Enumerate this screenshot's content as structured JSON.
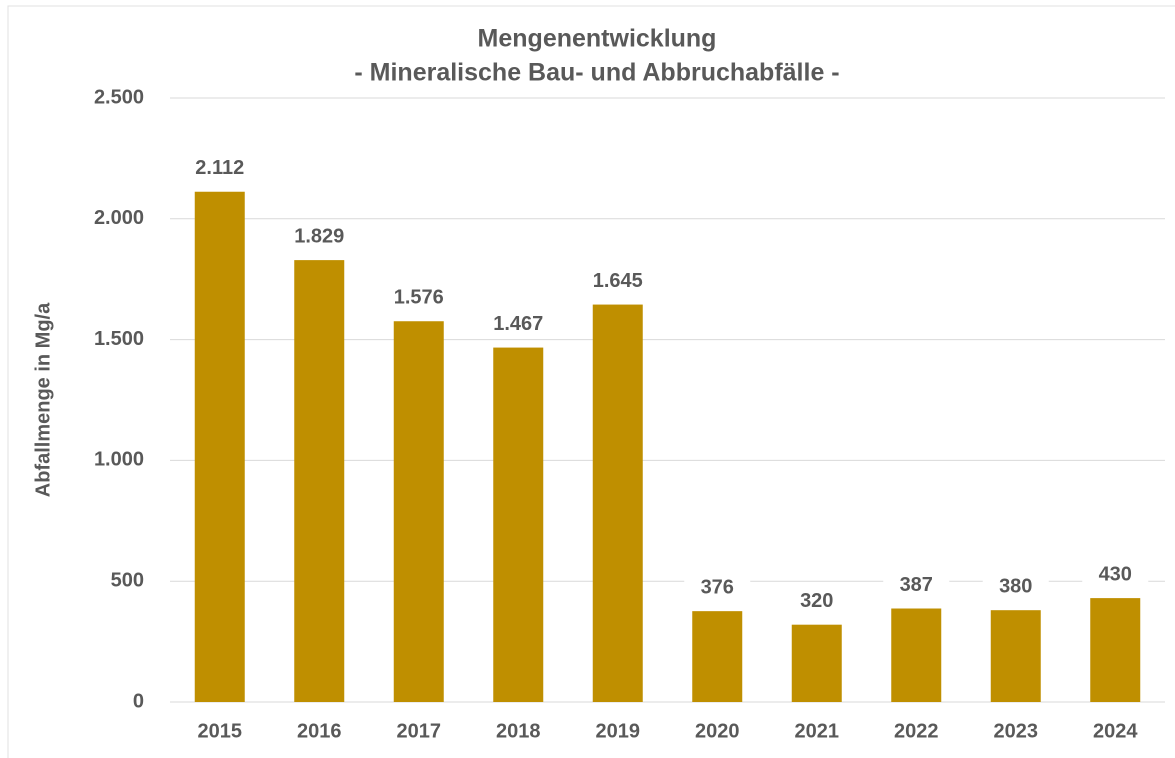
{
  "chart_data": {
    "type": "bar",
    "title": "Mengenentwicklung",
    "subtitle": "- Mineralische Bau- und Abbruchabfälle -",
    "y_label": "Abfallmenge in Mg/a",
    "categories": [
      "2015",
      "2016",
      "2017",
      "2018",
      "2019",
      "2020",
      "2021",
      "2022",
      "2023",
      "2024"
    ],
    "values": [
      2112,
      1829,
      1576,
      1467,
      1645,
      376,
      320,
      387,
      380,
      430
    ],
    "value_labels": [
      "2.112",
      "1.829",
      "1.576",
      "1.467",
      "1.645",
      "376",
      "320",
      "387",
      "380",
      "430"
    ],
    "color": "#bf8f00",
    "ylim": [
      0,
      2500
    ],
    "yticks": [
      0,
      500,
      {
        "value": 1000,
        "label": "1.000"
      },
      {
        "value": 1500,
        "label": "1.500"
      },
      {
        "value": 2000,
        "label": "2.000"
      },
      {
        "value": 2500,
        "label": "2.500"
      }
    ],
    "grid": true
  }
}
